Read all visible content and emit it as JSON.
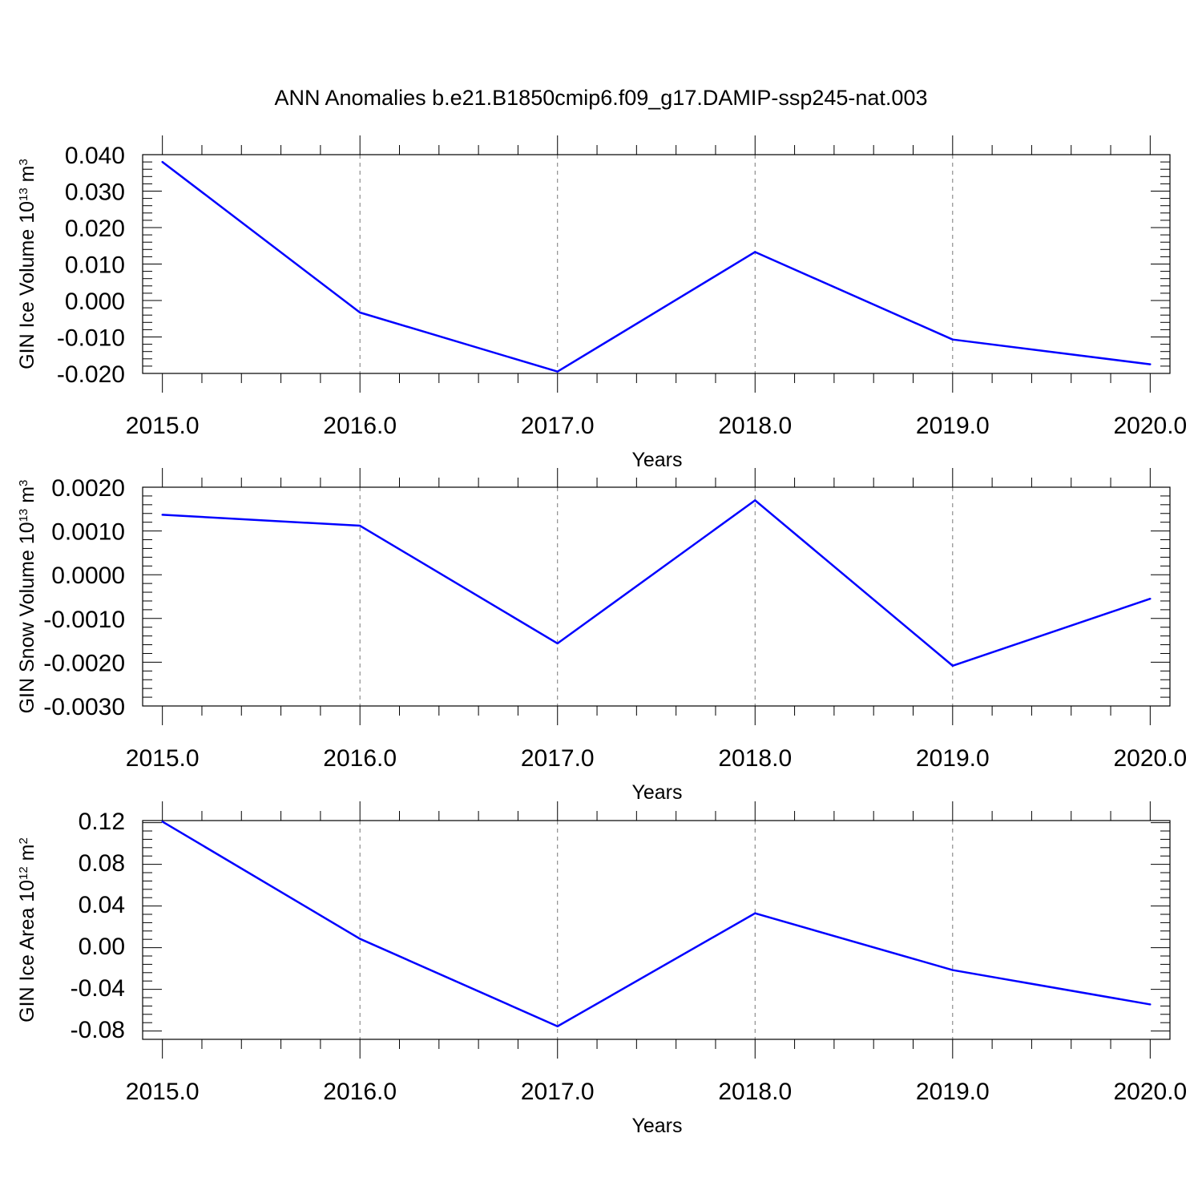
{
  "figure": {
    "title": "ANN Anomalies b.e21.B1850cmip6.f09_g17.DAMIP-ssp245-nat.003",
    "series_color": "#0000ff"
  },
  "chart_data": [
    {
      "type": "line",
      "xlabel": "Years",
      "ylabel": "GIN Ice Volume 10",
      "ylabel_exp": "13",
      "ylabel_unit": " m",
      "ylabel_unit_exp": "3",
      "x": [
        2015,
        2016,
        2017,
        2018,
        2019,
        2020
      ],
      "y": [
        0.038,
        -0.0033,
        -0.0195,
        0.0133,
        -0.0107,
        -0.0175
      ],
      "xlim": [
        2014.9,
        2020.1
      ],
      "ylim": [
        -0.02,
        0.04
      ],
      "xticks": [
        2015,
        2016,
        2017,
        2018,
        2019,
        2020
      ],
      "xtick_labels": [
        "2015.0",
        "2016.0",
        "2017.0",
        "2018.0",
        "2019.0",
        "2020.0"
      ],
      "yticks": [
        -0.02,
        -0.01,
        0.0,
        0.01,
        0.02,
        0.03,
        0.04
      ],
      "ytick_labels": [
        "-0.020",
        "-0.010",
        "0.000",
        "0.010",
        "0.020",
        "0.030",
        "0.040"
      ],
      "y_minor_step": 0.002,
      "grid": "vertical-dashed"
    },
    {
      "type": "line",
      "xlabel": "Years",
      "ylabel": "GIN Snow Volume 10",
      "ylabel_exp": "13",
      "ylabel_unit": " m",
      "ylabel_unit_exp": "3",
      "x": [
        2015,
        2016,
        2017,
        2018,
        2019,
        2020
      ],
      "y": [
        0.00137,
        0.00112,
        -0.00157,
        0.0017,
        -0.00208,
        -0.00055
      ],
      "xlim": [
        2014.9,
        2020.1
      ],
      "ylim": [
        -0.003,
        0.002
      ],
      "xticks": [
        2015,
        2016,
        2017,
        2018,
        2019,
        2020
      ],
      "xtick_labels": [
        "2015.0",
        "2016.0",
        "2017.0",
        "2018.0",
        "2019.0",
        "2020.0"
      ],
      "yticks": [
        -0.003,
        -0.002,
        -0.001,
        0.0,
        0.001,
        0.002
      ],
      "ytick_labels": [
        "-0.0030",
        "-0.0020",
        "-0.0010",
        "0.0000",
        "0.0010",
        "0.0020"
      ],
      "y_minor_step": 0.0002,
      "grid": "vertical-dashed"
    },
    {
      "type": "line",
      "xlabel": "Years",
      "ylabel": "GIN Ice Area 10",
      "ylabel_exp": "12",
      "ylabel_unit": " m",
      "ylabel_unit_exp": "2",
      "x": [
        2015,
        2016,
        2017,
        2018,
        2019,
        2020
      ],
      "y": [
        0.119,
        0.0065,
        -0.0775,
        0.031,
        -0.0235,
        -0.0565
      ],
      "xlim": [
        2014.9,
        2020.1
      ],
      "ylim": [
        -0.09,
        0.12
      ],
      "xticks": [
        2015,
        2016,
        2017,
        2018,
        2019,
        2020
      ],
      "xtick_labels": [
        "2015.0",
        "2016.0",
        "2017.0",
        "2018.0",
        "2019.0",
        "2020.0"
      ],
      "yticks": [
        -0.08,
        -0.04,
        0.0,
        0.04,
        0.08,
        0.12
      ],
      "ytick_labels": [
        "-0.08",
        "-0.04",
        "0.00",
        "0.04",
        "0.08",
        "0.12"
      ],
      "y_minor_step": 0.008,
      "grid": "vertical-dashed"
    }
  ]
}
